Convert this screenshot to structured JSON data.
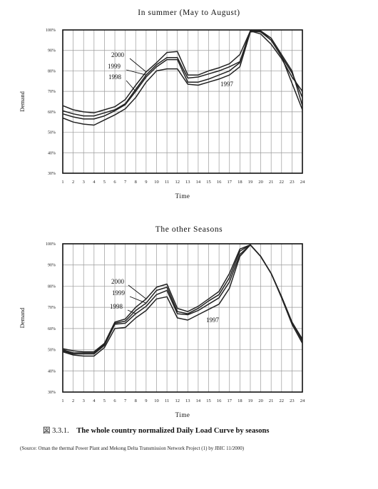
{
  "chart_data": [
    {
      "type": "line",
      "title": "In summer (May to August)",
      "xlabel": "Time",
      "ylabel": "Demand",
      "x": [
        1,
        2,
        3,
        4,
        5,
        6,
        7,
        8,
        9,
        10,
        11,
        12,
        13,
        14,
        15,
        16,
        17,
        18,
        19,
        20,
        21,
        22,
        23,
        24
      ],
      "y_ticks": [
        "100%",
        "90%",
        "80%",
        "70%",
        "60%",
        "50%",
        "40%",
        "30%"
      ],
      "ylim": [
        30,
        100
      ],
      "grid": true,
      "series": [
        {
          "name": "2000",
          "values": [
            63,
            61,
            60,
            59.5,
            61,
            62.5,
            66,
            73,
            79.5,
            84,
            89,
            89.5,
            78,
            78,
            80,
            81.5,
            83.5,
            88,
            99.5,
            98,
            93,
            86,
            77,
            70
          ]
        },
        {
          "name": "1999",
          "values": [
            60.5,
            59,
            58,
            58,
            59.5,
            61,
            64,
            71,
            78,
            83,
            86.5,
            86.5,
            76.5,
            77,
            78.5,
            80,
            82,
            84.5,
            99.5,
            99,
            95,
            87,
            79,
            67
          ]
        },
        {
          "name": "1998",
          "values": [
            59,
            57.5,
            56.5,
            56.5,
            58,
            60.5,
            63.5,
            70,
            77,
            82,
            85.5,
            85.5,
            74.5,
            74.5,
            76,
            78,
            80,
            84,
            99.5,
            99.5,
            96,
            88,
            80,
            63
          ]
        },
        {
          "name": "1997",
          "values": [
            57,
            55,
            54,
            53.5,
            56,
            58.5,
            61.5,
            67,
            74.5,
            80,
            81,
            81,
            73.5,
            73,
            74.5,
            76,
            78,
            82,
            99,
            99.5,
            95,
            87,
            74,
            61
          ]
        }
      ],
      "annotations": [
        "2000",
        "1999",
        "1998",
        "1997"
      ]
    },
    {
      "type": "line",
      "title": "The other Seasons",
      "xlabel": "Time",
      "ylabel": "Demand",
      "x": [
        1,
        2,
        3,
        4,
        5,
        6,
        7,
        8,
        9,
        10,
        11,
        12,
        13,
        14,
        15,
        16,
        17,
        18,
        19,
        20,
        21,
        22,
        23,
        24
      ],
      "y_ticks": [
        "100%",
        "90%",
        "80%",
        "70%",
        "60%",
        "50%",
        "40%",
        "30%"
      ],
      "ylim": [
        30,
        100
      ],
      "grid": true,
      "series": [
        {
          "name": "2000",
          "values": [
            50.5,
            49.5,
            49,
            49,
            53,
            63,
            64.5,
            70,
            74,
            79.5,
            81,
            69.5,
            68,
            70.5,
            74,
            77.5,
            86,
            97.5,
            99.5,
            94,
            86,
            75,
            63,
            55
          ]
        },
        {
          "name": "1999",
          "values": [
            50,
            48.5,
            48.5,
            48.5,
            52.5,
            62.5,
            63.5,
            68.5,
            72,
            78,
            79.5,
            68,
            67,
            69.5,
            73,
            76,
            84,
            96.5,
            99.5,
            94,
            86,
            75,
            63,
            54.5
          ]
        },
        {
          "name": "1998",
          "values": [
            49.5,
            48,
            48,
            48,
            52,
            62,
            62.5,
            67,
            70.5,
            76,
            78,
            67,
            66.5,
            68.5,
            71.5,
            74.5,
            82,
            95,
            99.5,
            94,
            86,
            75,
            63,
            54
          ]
        },
        {
          "name": "1997",
          "values": [
            49,
            47.5,
            47,
            47,
            51,
            60,
            60.5,
            65,
            68.5,
            74,
            75,
            65,
            64,
            66.5,
            69,
            71.5,
            79,
            94,
            99.5,
            94,
            86,
            74.5,
            62,
            53
          ]
        }
      ],
      "annotations": [
        "2000",
        "1999",
        "1998",
        "1997"
      ]
    }
  ],
  "caption": {
    "figure_number": "図 3.3.1.",
    "text": "The whole country normalized Daily Load Curve by seasons"
  },
  "source": "(Source: Oman the thermal Power Plant and Mekong Delta Transmission Network Project (1) by JBIC 11/2000)",
  "colors": {
    "line": "#222222",
    "grid": "#9a9a9a",
    "frame": "#111111"
  }
}
